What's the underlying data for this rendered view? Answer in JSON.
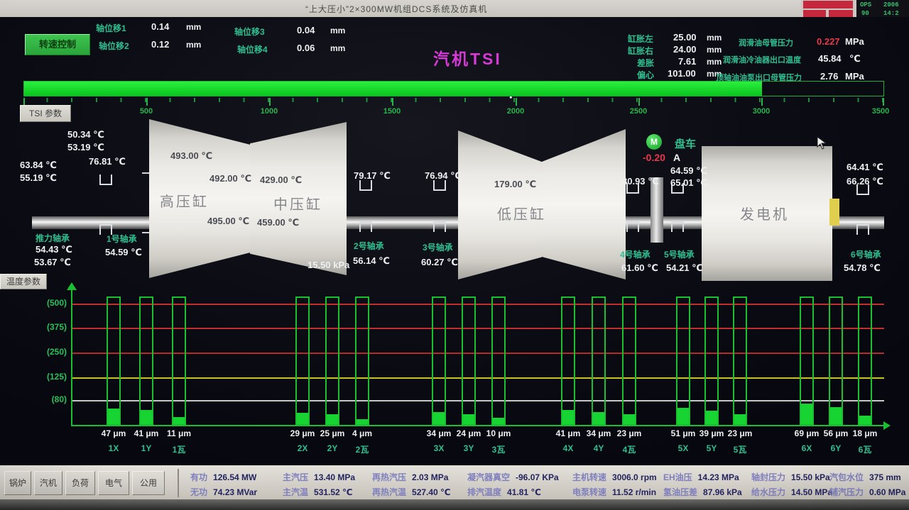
{
  "window": {
    "title": "“上大压小”2×300MW机组DCS系统及仿真机",
    "ops": {
      "c1r1": "OPS",
      "c1r2": "90",
      "c2r1": "2006",
      "c2r2": "14:2"
    }
  },
  "header": {
    "speed_control_btn": "转速控制",
    "tsi_params_btn": "TSI 参数",
    "temp_params_btn": "温度参数",
    "tsi_title": "汽机TSI",
    "axial": [
      {
        "label": "轴位移1",
        "value": "0.14",
        "unit": "mm"
      },
      {
        "label": "轴位移2",
        "value": "0.12",
        "unit": "mm"
      },
      {
        "label": "轴位移3",
        "value": "0.04",
        "unit": "mm"
      },
      {
        "label": "轴位移4",
        "value": "0.06",
        "unit": "mm"
      }
    ],
    "expansion": [
      {
        "label": "缸胀左",
        "value": "25.00",
        "unit": "mm"
      },
      {
        "label": "缸胀右",
        "value": "24.00",
        "unit": "mm"
      },
      {
        "label": "差胀",
        "value": "7.61",
        "unit": "mm"
      },
      {
        "label": "偏心",
        "value": "101.00",
        "unit": "mm"
      }
    ],
    "oil": [
      {
        "label": "润滑油母管压力",
        "value": "0.227",
        "unit": "MPa"
      },
      {
        "label": "润滑油冷油器出口温度",
        "value": "45.84",
        "unit": "℃"
      },
      {
        "label": "顶轴油油泵出口母管压力",
        "value": "2.76",
        "unit": "MPa"
      }
    ],
    "speed": {
      "display": "3006.0 rpm",
      "value": 3006,
      "max": 3500,
      "ticks": [
        "0",
        "500",
        "1000",
        "1500",
        "2000",
        "2500",
        "3000",
        "3500"
      ]
    }
  },
  "diagram": {
    "cylinders": {
      "hp": "高压缸",
      "ip": "中压缸",
      "lp": "低压缸",
      "gen": "发电机"
    },
    "temps": {
      "left_a": "50.34 ℃",
      "left_b": "53.19 ℃",
      "left_c": "63.84 ℃",
      "left_d": "55.19 ℃",
      "left_e": "76.81 ℃",
      "hp_top": "493.00 ℃",
      "hp_mid": "492.00 ℃",
      "hp_bot": "495.00 ℃",
      "ip_top": "429.00 ℃",
      "ip_bot": "459.00 ℃",
      "ip_exh": "15.50 kPa",
      "lp_top": "179.00 ℃",
      "b2_top": "79.17 ℃",
      "b3_top": "76.94 ℃",
      "b45_top": "80.93 ℃",
      "b5_a": "64.59 ℃",
      "b5_b": "65.01 ℃",
      "gen_a": "64.41 ℃",
      "gen_b": "66.26 ℃"
    },
    "bearings": {
      "thrust": {
        "label": "推力轴承",
        "t1": "54.43 ℃",
        "t2": "53.67 ℃"
      },
      "b1": {
        "label": "1号轴承",
        "t": "54.59 ℃"
      },
      "b2": {
        "label": "2号轴承",
        "t": "56.14 ℃"
      },
      "b3": {
        "label": "3号轴承",
        "t": "60.27 ℃"
      },
      "b4": {
        "label": "4号轴承",
        "t": "61.60 ℃"
      },
      "b5": {
        "label": "5号轴承",
        "t": "54.21 ℃"
      },
      "b6": {
        "label": "6号轴承",
        "t": "54.78 ℃"
      }
    },
    "turning_gear": {
      "label": "盘车",
      "motor": "M",
      "current": "-0.20",
      "unit": "A"
    }
  },
  "chart_data": {
    "type": "bar",
    "title": "",
    "unit": "μm",
    "categories": [
      "1X",
      "1Y",
      "1瓦",
      "2X",
      "2Y",
      "2瓦",
      "3X",
      "3Y",
      "3瓦",
      "4X",
      "4Y",
      "4瓦",
      "5X",
      "5Y",
      "5瓦",
      "6X",
      "6Y",
      "6瓦"
    ],
    "values": [
      47,
      41,
      11,
      29,
      25,
      4,
      34,
      24,
      10,
      41,
      34,
      23,
      51,
      39,
      23,
      69,
      56,
      18
    ],
    "value_labels": [
      "47 μm",
      "41 μm",
      "11 μm",
      "29 μm",
      "25 μm",
      "4 μm",
      "34 μm",
      "24 μm",
      "10 μm",
      "41 μm",
      "34 μm",
      "23 μm",
      "51 μm",
      "39 μm",
      "23 μm",
      "69 μm",
      "56 μm",
      "18 μm"
    ],
    "y_tick_labels": [
      "(500)",
      "(375)",
      "(250)",
      "(125)",
      "(80)"
    ],
    "y_reference_lines": [
      {
        "label": "(500)",
        "color": "#c22f2f"
      },
      {
        "label": "(375)",
        "color": "#c22f2f"
      },
      {
        "label": "(250)",
        "color": "#b52a2a"
      },
      {
        "label": "(125)",
        "color": "#c5c520"
      },
      {
        "label": "(80)",
        "color": "#c8c8c8"
      }
    ],
    "grid": "horizontal reference lines",
    "legend": "none"
  },
  "toolbar": {
    "buttons": [
      "锅炉",
      "汽机",
      "负荷",
      "电气",
      "公用"
    ],
    "row1": [
      {
        "l": "有功",
        "v": "126.54 MW"
      },
      {
        "l": "主汽压",
        "v": "13.40 MPa"
      },
      {
        "l": "再热汽压",
        "v": "2.03 MPa"
      },
      {
        "l": "凝汽器真空",
        "v": "-96.07 KPa"
      },
      {
        "l": "主机转速",
        "v": "3006.0 rpm"
      },
      {
        "l": "EH油压",
        "v": "14.23 MPa"
      },
      {
        "l": "轴封压力",
        "v": "15.50 kPa"
      },
      {
        "l": "汽包水位",
        "v": "375 mm"
      }
    ],
    "row2": [
      {
        "l": "无功",
        "v": "74.23 MVar"
      },
      {
        "l": "主汽温",
        "v": "531.52 ℃"
      },
      {
        "l": "再热汽温",
        "v": "527.40 ℃"
      },
      {
        "l": "排汽温度",
        "v": "41.81 ℃"
      },
      {
        "l": "电泵转速",
        "v": "11.52 r/min"
      },
      {
        "l": "氢油压差",
        "v": "87.96 kPa"
      },
      {
        "l": "给水压力",
        "v": "14.50 MPa"
      },
      {
        "l": "辅汽压力",
        "v": "0.60 MPa"
      }
    ]
  },
  "colors": {
    "green_text": "#2fbf8f",
    "bar_green": "#18d433",
    "magenta": "#d63ad6",
    "alert_red": "#e8394a",
    "label_blue": "#7f7fbe",
    "value_dark": "#232360"
  }
}
